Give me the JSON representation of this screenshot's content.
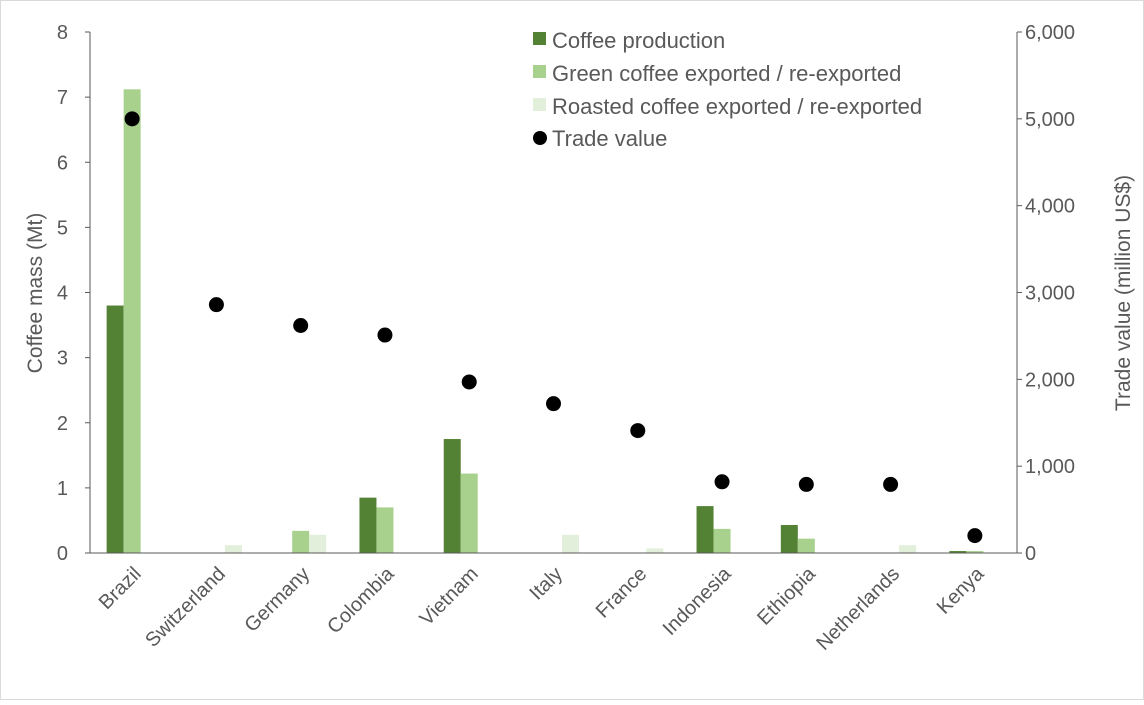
{
  "chart_data": {
    "type": "bar",
    "categories": [
      "Brazil",
      "Switzerland",
      "Germany",
      "Colombia",
      "Vietnam",
      "Italy",
      "France",
      "Indonesia",
      "Ethiopia",
      "Netherlands",
      "Kenya"
    ],
    "series": [
      {
        "name": "Coffee production",
        "type": "bar",
        "axis": "left",
        "color": "#548235",
        "values": [
          3.8,
          0,
          0,
          0.85,
          1.75,
          0,
          0,
          0.72,
          0.43,
          0,
          0.03
        ]
      },
      {
        "name": "Green coffee exported / re-exported",
        "type": "bar",
        "axis": "left",
        "color": "#A9D18E",
        "values": [
          7.12,
          0,
          0.34,
          0.7,
          1.22,
          0,
          0,
          0.37,
          0.22,
          0,
          0.03
        ]
      },
      {
        "name": "Roasted coffee exported / re-exported",
        "type": "bar",
        "axis": "left",
        "color": "#E2EFDA",
        "values": [
          0,
          0.12,
          0.28,
          0,
          0,
          0.28,
          0.07,
          0,
          0,
          0.12,
          0
        ]
      },
      {
        "name": "Trade value",
        "type": "scatter",
        "axis": "right",
        "color": "#000000",
        "values": [
          5000,
          2860,
          2620,
          2510,
          1970,
          1720,
          1410,
          820,
          790,
          790,
          200
        ]
      }
    ],
    "ylabel": "Coffee mass (Mt)",
    "ylim": [
      0,
      8
    ],
    "yticks": [
      "0",
      "1",
      "2",
      "3",
      "4",
      "5",
      "6",
      "7",
      "8"
    ],
    "y2label": "Trade value (million US$)",
    "y2lim": [
      0,
      6000
    ],
    "y2ticks": [
      "0",
      "1,000",
      "2,000",
      "3,000",
      "4,000",
      "5,000",
      "6,000"
    ],
    "grid": false,
    "legend_position": "top-center"
  }
}
